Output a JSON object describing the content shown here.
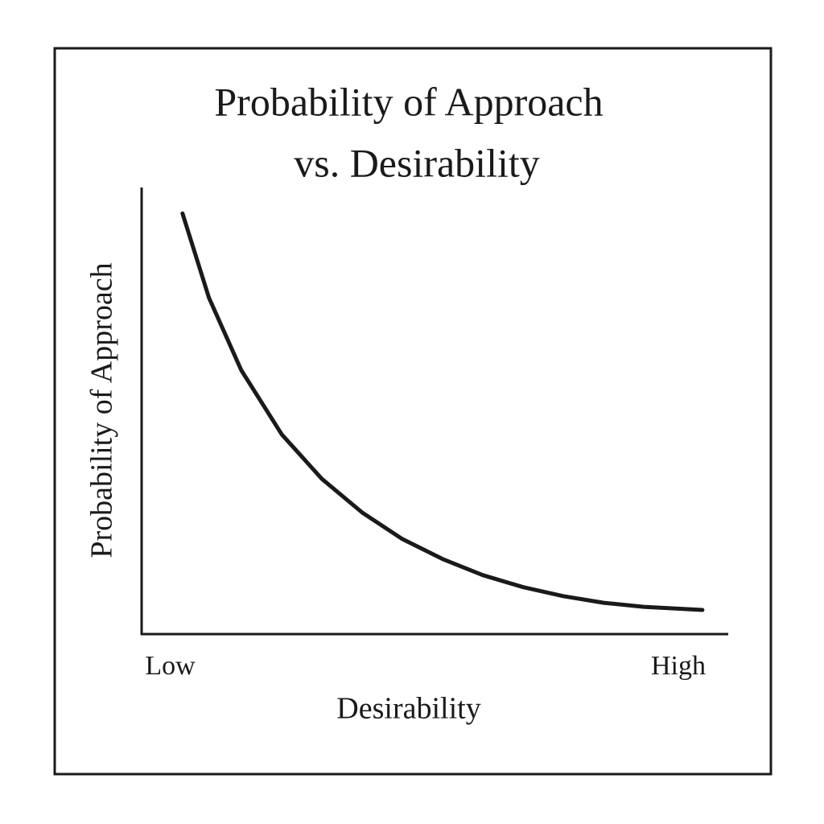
{
  "chart_data": {
    "type": "line",
    "title": [
      "Probability of Approach",
      "vs. Desirability"
    ],
    "x_label": "Desirability",
    "y_label": "Probability of Approach",
    "xlim": [
      0,
      1
    ],
    "ylim": [
      0,
      1
    ],
    "xticks": [
      {
        "value": 0.05,
        "label": "Low"
      },
      {
        "value": 0.915,
        "label": "High"
      }
    ],
    "color": "#1a1a1a",
    "x": [
      0.071,
      0.116,
      0.171,
      0.24,
      0.308,
      0.377,
      0.445,
      0.514,
      0.582,
      0.651,
      0.719,
      0.788,
      0.856,
      0.956
    ],
    "values": [
      0.942,
      0.753,
      0.591,
      0.447,
      0.348,
      0.272,
      0.213,
      0.168,
      0.132,
      0.105,
      0.085,
      0.07,
      0.061,
      0.054
    ]
  }
}
